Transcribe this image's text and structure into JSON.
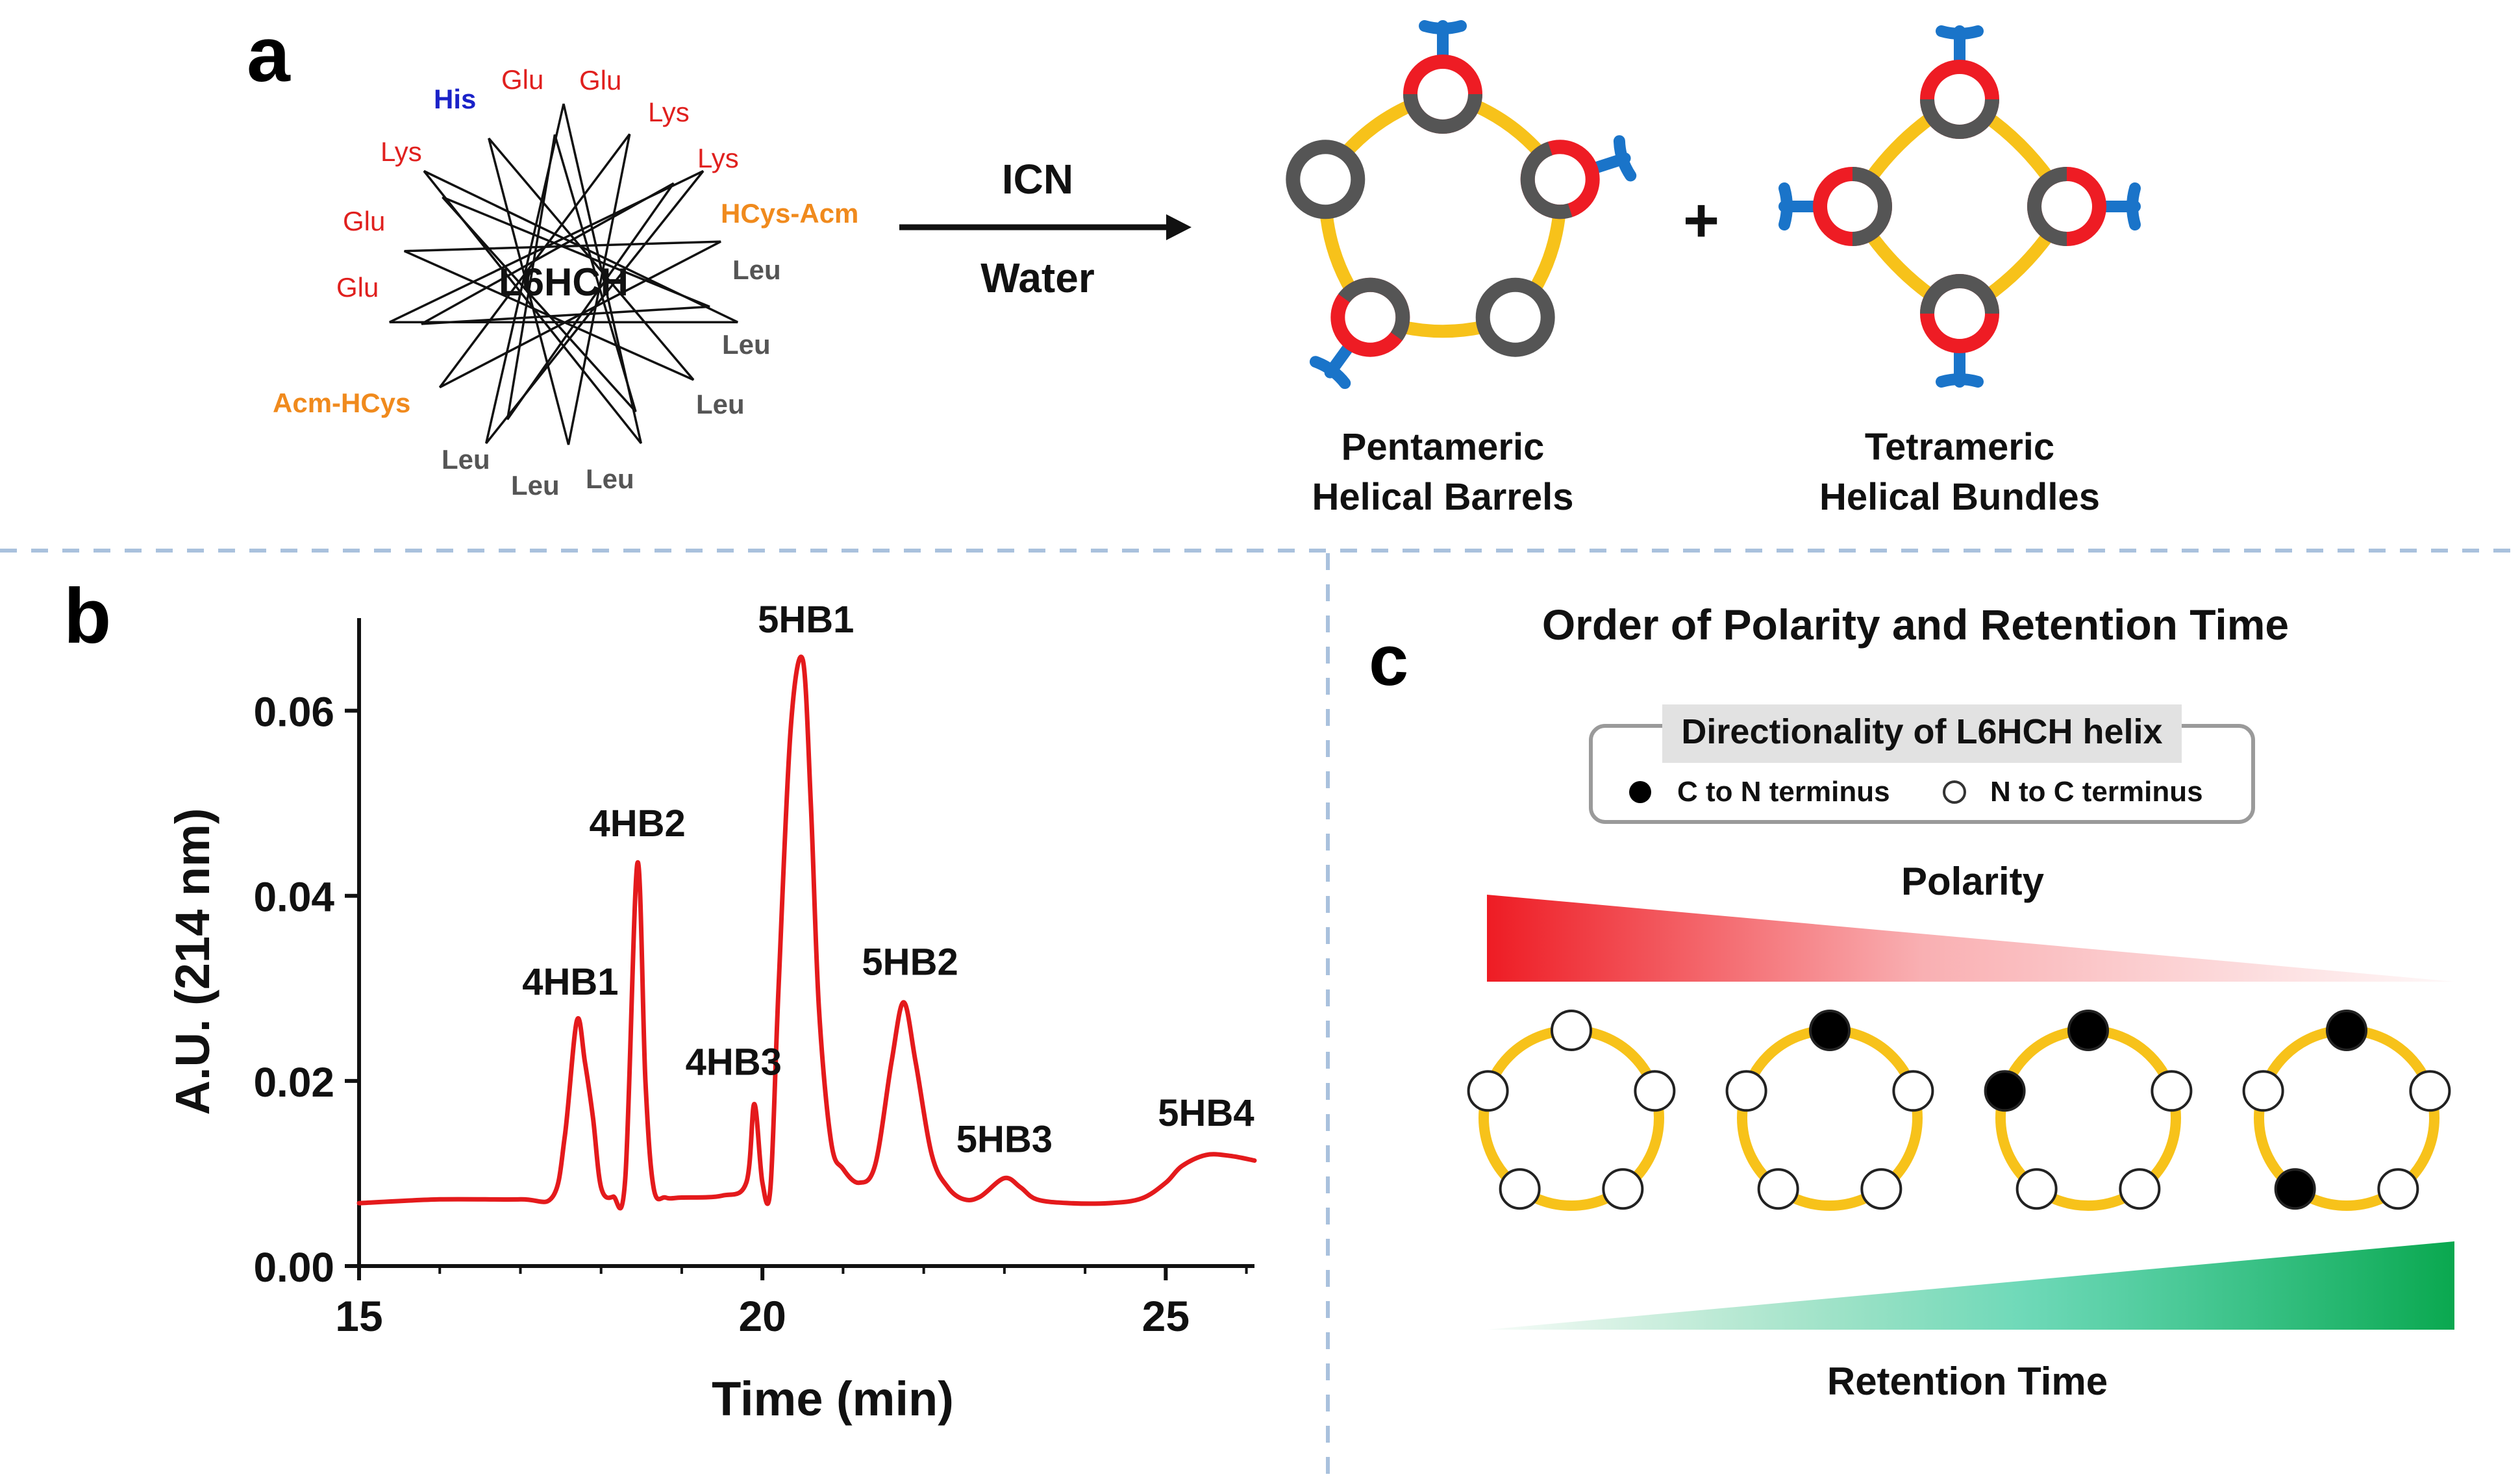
{
  "panel_a": {
    "label": "a",
    "wheel_title": "L6HCH",
    "residues": [
      {
        "text": "His",
        "color": "#1a22c8"
      },
      {
        "text": "Glu",
        "color": "#e0201e"
      },
      {
        "text": "Glu",
        "color": "#e0201e"
      },
      {
        "text": "Lys",
        "color": "#e0201e"
      },
      {
        "text": "Lys",
        "color": "#e0201e"
      },
      {
        "text": "Lys",
        "color": "#e0201e"
      },
      {
        "text": "Glu",
        "color": "#e0201e"
      },
      {
        "text": "Glu",
        "color": "#e0201e"
      },
      {
        "text": "HCys-Acm",
        "color": "#f08a1d"
      },
      {
        "text": "Acm-HCys",
        "color": "#f08a1d"
      },
      {
        "text": "Leu",
        "color": "#555555"
      },
      {
        "text": "Leu",
        "color": "#555555"
      },
      {
        "text": "Leu",
        "color": "#555555"
      },
      {
        "text": "Leu",
        "color": "#555555"
      },
      {
        "text": "Leu",
        "color": "#555555"
      },
      {
        "text": "Leu",
        "color": "#555555"
      }
    ],
    "arrow_top": "ICN",
    "arrow_bottom": "Water",
    "plus": "+",
    "penta_label": [
      "Pentameric",
      "Helical Barrels"
    ],
    "tetra_label": [
      "Tetrameric",
      "Helical Bundles"
    ]
  },
  "panel_b": {
    "label": "b"
  },
  "panel_c": {
    "label": "c",
    "title": "Order of Polarity and Retention Time",
    "legend_title": "Directionality of L6HCH helix",
    "legend_filled": "C to N terminus",
    "legend_open": "N to C terminus",
    "polarity_label": "Polarity",
    "retention_label": "Retention Time",
    "arrangements": [
      {
        "filled": []
      },
      {
        "filled": [
          0
        ]
      },
      {
        "filled": [
          0,
          4
        ]
      },
      {
        "filled": [
          0,
          3
        ]
      }
    ],
    "colors": {
      "polarity": "#ee1c24",
      "retention": "#0aa84f",
      "ring": "#f7c21a"
    }
  },
  "chart_data": {
    "type": "line",
    "title": "",
    "xlabel": "Time (min)",
    "ylabel": "A.U. (214 nm)",
    "xlim": [
      15,
      26.1
    ],
    "ylim": [
      0,
      0.07
    ],
    "xticks": [
      15,
      20,
      25
    ],
    "xtick_labels": [
      "15",
      "20",
      "25"
    ],
    "yticks": [
      0.0,
      0.02,
      0.04,
      0.06
    ],
    "ytick_labels": [
      "0.00",
      "0.02",
      "0.04",
      "0.06"
    ],
    "series": [
      {
        "name": "chromatogram",
        "color": "#e41a1c",
        "x": [
          15.0,
          16.0,
          17.0,
          17.4,
          17.55,
          17.7,
          17.8,
          17.9,
          18.0,
          18.15,
          18.3,
          18.45,
          18.55,
          18.65,
          18.8,
          19.0,
          19.5,
          19.8,
          19.9,
          20.0,
          20.1,
          20.2,
          20.35,
          20.5,
          20.6,
          20.7,
          20.85,
          21.0,
          21.2,
          21.4,
          21.6,
          21.75,
          21.9,
          22.1,
          22.3,
          22.5,
          22.7,
          23.0,
          23.2,
          23.4,
          23.8,
          24.3,
          24.7,
          25.0,
          25.2,
          25.5,
          25.8,
          26.1
        ],
        "y": [
          0.0068,
          0.0072,
          0.0072,
          0.0075,
          0.014,
          0.0265,
          0.022,
          0.016,
          0.0085,
          0.0075,
          0.0095,
          0.0435,
          0.02,
          0.0085,
          0.0074,
          0.0074,
          0.0076,
          0.009,
          0.0175,
          0.009,
          0.0085,
          0.03,
          0.058,
          0.0655,
          0.05,
          0.028,
          0.0135,
          0.0105,
          0.009,
          0.011,
          0.022,
          0.0285,
          0.022,
          0.012,
          0.0085,
          0.0072,
          0.0075,
          0.0095,
          0.0085,
          0.0072,
          0.0068,
          0.0068,
          0.0073,
          0.009,
          0.0108,
          0.012,
          0.0119,
          0.0114
        ]
      }
    ],
    "annotations": [
      {
        "text": "4HB1",
        "x": 17.7,
        "y": 0.0265
      },
      {
        "text": "4HB2",
        "x": 18.45,
        "y": 0.0435
      },
      {
        "text": "4HB3",
        "x": 19.9,
        "y": 0.0175
      },
      {
        "text": "5HB1",
        "x": 20.5,
        "y": 0.0655
      },
      {
        "text": "5HB2",
        "x": 21.75,
        "y": 0.0285
      },
      {
        "text": "5HB3",
        "x": 23.0,
        "y": 0.0095
      },
      {
        "text": "5HB4",
        "x": 25.5,
        "y": 0.012
      }
    ]
  }
}
